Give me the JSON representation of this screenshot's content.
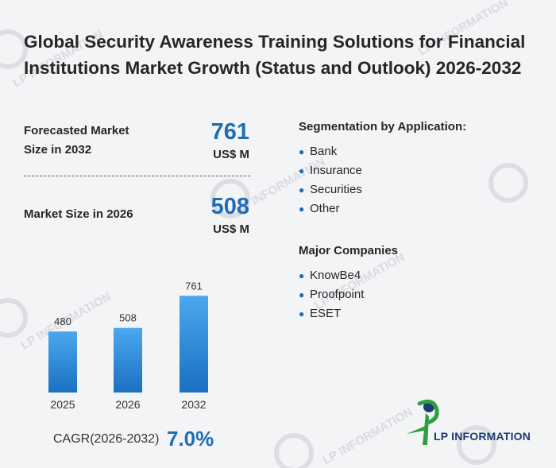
{
  "title": "Global Security Awareness Training Solutions for Financial Institutions Market Growth (Status and Outlook) 2026-2032",
  "forecast": {
    "label_line1": "Forecasted Market",
    "label_line2": "Size in 2032",
    "value": "761",
    "unit": "US$ M"
  },
  "current": {
    "label": "Market Size in 2026",
    "value": "508",
    "unit": "US$ M"
  },
  "segmentation": {
    "heading": "Segmentation by Application:",
    "items": [
      "Bank",
      "Insurance",
      "Securities",
      "Other"
    ]
  },
  "companies": {
    "heading": "Major Companies",
    "items": [
      "KnowBe4",
      "Proofpoint",
      "ESET"
    ]
  },
  "chart_data": {
    "type": "bar",
    "categories": [
      "2025",
      "2026",
      "2032"
    ],
    "values": [
      480,
      508,
      761
    ],
    "data_labels": [
      "480",
      "508",
      "761"
    ],
    "ylim": [
      0,
      800
    ],
    "grid": false,
    "title": "",
    "xlabel": "",
    "ylabel": ""
  },
  "cagr": {
    "label": "CAGR(2026-2032)",
    "value": "7.0%"
  },
  "logo": {
    "text": "LP INFORMATION",
    "watermark_text": "LP INFORMATION"
  },
  "colors": {
    "accent": "#1f6db5",
    "bar_top": "#4aa8ee",
    "bar_bottom": "#1c6fc2",
    "logo_green": "#2e9e3e",
    "logo_navy": "#1f3a6e"
  }
}
